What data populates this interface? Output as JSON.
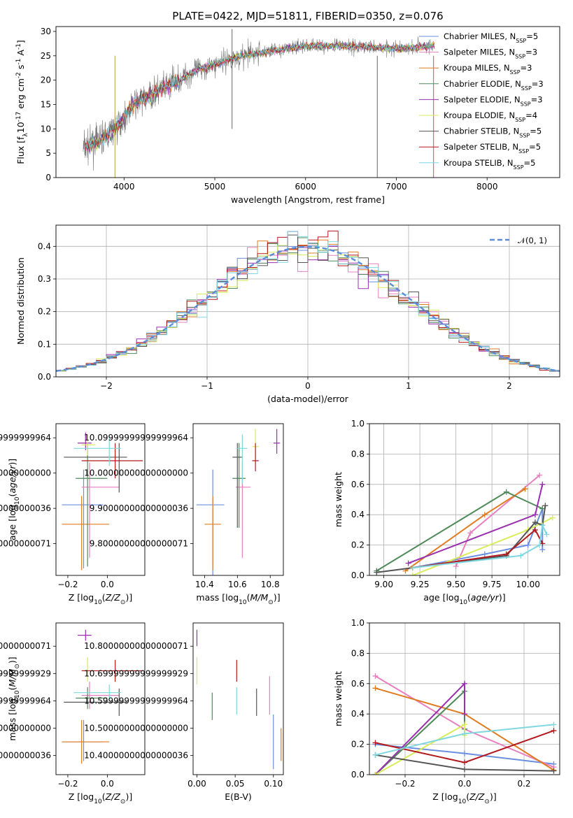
{
  "figure_title": "PLATE=0422, MJD=51811, FIBERID=0350, z=0.076",
  "colors": {
    "Chabrier MILES": "#6a8fe0",
    "Salpeter MILES": "#e77fbf",
    "Kroupa MILES": "#e07b20",
    "Chabrier ELODIE": "#4f8a5a",
    "Salpeter ELODIE": "#9a2fb0",
    "Kroupa ELODIE": "#d9ec5a",
    "Chabrier STELIB": "#555555",
    "Salpeter STELIB": "#b3191c",
    "Kroupa STELIB": "#7fd8e0",
    "normal": "#5b8cd6"
  },
  "chart_data": [
    {
      "id": "spectrum",
      "type": "line",
      "title": "PLATE=0422, MJD=51811, FIBERID=0350, z=0.076",
      "xlabel": "wavelength [Angstrom, rest frame]",
      "ylabel": "Flux [f$_\\lambda$10$^{-17}$ erg cm$^{-2}$ s$^{-1}$ A$^{-1}$]",
      "ylabel_text": "Flux [fλ10⁻¹⁷ erg cm⁻² s⁻¹ A⁻¹]",
      "xlim": [
        3250,
        8800
      ],
      "ylim": [
        0,
        31
      ],
      "xticks": [
        4000,
        5000,
        6000,
        7000,
        8000
      ],
      "yticks": [
        0,
        5,
        10,
        15,
        20,
        25,
        30
      ],
      "continuum": [
        [
          3550,
          6
        ],
        [
          3800,
          8.5
        ],
        [
          3950,
          11
        ],
        [
          4100,
          15
        ],
        [
          4400,
          18
        ],
        [
          4800,
          22
        ],
        [
          5200,
          24.5
        ],
        [
          5600,
          26
        ],
        [
          6000,
          27
        ],
        [
          6500,
          27
        ],
        [
          7000,
          26.5
        ],
        [
          7400,
          27
        ]
      ],
      "spikes": [
        [
          5190,
          30.5
        ],
        [
          6790,
          0
        ],
        [
          7410,
          0
        ],
        [
          3900,
          0
        ]
      ],
      "legend": [
        "Chabrier MILES, N$_{SSP}$=5",
        "Salpeter MILES, N$_{SSP}$=3",
        "Kroupa MILES, N$_{SSP}$=3",
        "Chabrier ELODIE, N$_{SSP}$=3",
        "Salpeter ELODIE, N$_{SSP}$=3",
        "Kroupa ELODIE, N$_{SSP}$=4",
        "Chabrier STELIB, N$_{SSP}$=5",
        "Salpeter STELIB, N$_{SSP}$=5",
        "Kroupa STELIB, N$_{SSP}$=5"
      ],
      "legend_parts": [
        [
          "Chabrier MILES, N",
          "SSP",
          "=5"
        ],
        [
          "Salpeter MILES, N",
          "SSP",
          "=3"
        ],
        [
          "Kroupa MILES, N",
          "SSP",
          "=3"
        ],
        [
          "Chabrier ELODIE, N",
          "SSP",
          "=3"
        ],
        [
          "Salpeter ELODIE, N",
          "SSP",
          "=3"
        ],
        [
          "Kroupa ELODIE, N",
          "SSP",
          "=4"
        ],
        [
          "Chabrier STELIB, N",
          "SSP",
          "=5"
        ],
        [
          "Salpeter STELIB, N",
          "SSP",
          "=5"
        ],
        [
          "Kroupa STELIB, N",
          "SSP",
          "=5"
        ]
      ],
      "legend_position": "upper right"
    },
    {
      "id": "residuals",
      "type": "histogram",
      "xlabel": "(data-model)/error",
      "ylabel": "Normed distribution",
      "xlim": [
        -2.5,
        2.5
      ],
      "ylim": [
        0,
        0.465
      ],
      "xticks": [
        -2,
        -1,
        0,
        1,
        2
      ],
      "yticks": [
        0.0,
        0.1,
        0.2,
        0.3,
        0.4
      ],
      "grid": true,
      "bin_width": 0.1,
      "reference_curve": {
        "label": "$\\mathcal{N}(0,1)$",
        "label_text": "𝒩(0, 1)",
        "mean": 0,
        "sigma": 1
      },
      "legend_position": "upper right"
    },
    {
      "id": "age_vs_Z",
      "type": "errorbar",
      "xlabel": "Z [log$_{10}$($Z/Z_\\odot$)]",
      "ylabel": "age  [log$_{10}$($age/yr$)]",
      "xlim": [
        -0.26,
        0.19
      ],
      "ylim": [
        9.71,
        10.14
      ],
      "xticks": [
        -0.2,
        0.0
      ],
      "yticks": [
        9.8,
        9.9,
        10.0,
        10.1
      ],
      "points": [
        {
          "model": "Chabrier MILES",
          "x": -0.12,
          "y": 9.91,
          "xerr": [
            0.11,
            0.1
          ],
          "yerr": [
            0.18,
            0.1
          ]
        },
        {
          "model": "Salpeter MILES",
          "x": -0.09,
          "y": 9.96,
          "xerr": [
            0.04,
            0.15
          ],
          "yerr": [
            0.2,
            0.07
          ]
        },
        {
          "model": "Kroupa MILES",
          "x": -0.13,
          "y": 9.855,
          "xerr": [
            0.1,
            0.14
          ],
          "yerr": [
            0.13,
            0.08
          ]
        },
        {
          "model": "Chabrier ELODIE",
          "x": -0.1,
          "y": 9.985,
          "xerr": [
            0.06,
            0.1
          ],
          "yerr": [
            0.25,
            0.1
          ]
        },
        {
          "model": "Salpeter ELODIE",
          "x": -0.11,
          "y": 10.085,
          "xerr": [
            0.04,
            0.03
          ],
          "yerr": [
            0.02,
            0.03
          ]
        },
        {
          "model": "Kroupa ELODIE",
          "x": -0.1,
          "y": 10.08,
          "xerr": [
            0.03,
            0.04
          ],
          "yerr": [
            0.03,
            0.03
          ]
        },
        {
          "model": "Chabrier STELIB",
          "x": 0.06,
          "y": 10.045,
          "xerr": [
            0.28,
            0.04
          ],
          "yerr": [
            0.1,
            0.04
          ]
        },
        {
          "model": "Salpeter STELIB",
          "x": 0.04,
          "y": 10.035,
          "xerr": [
            0.17,
            0.14
          ],
          "yerr": [
            0.05,
            0.05
          ]
        },
        {
          "model": "Kroupa STELIB",
          "x": 0.01,
          "y": 10.07,
          "xerr": [
            0.18,
            0.06
          ],
          "yerr": [
            0.05,
            0.04
          ]
        }
      ]
    },
    {
      "id": "age_vs_mass",
      "type": "errorbar",
      "xlabel": "mass [log$_{10}$($M/M_\\odot$)]",
      "ylabel": "",
      "xlim": [
        10.33,
        10.88
      ],
      "ylim": [
        9.71,
        10.14
      ],
      "xticks": [
        10.4,
        10.6,
        10.8
      ],
      "yticks": [
        9.8,
        9.9,
        10.0,
        10.1
      ],
      "points": [
        {
          "model": "Chabrier MILES",
          "x": 10.45,
          "y": 9.91,
          "xerr": [
            0.1,
            0.07
          ],
          "yerr": [
            0.2,
            0.1
          ]
        },
        {
          "model": "Salpeter MILES",
          "x": 10.63,
          "y": 9.96,
          "xerr": [
            0.04,
            0.05
          ],
          "yerr": [
            0.2,
            0.07
          ]
        },
        {
          "model": "Kroupa MILES",
          "x": 10.45,
          "y": 9.855,
          "xerr": [
            0.05,
            0.05
          ],
          "yerr": [
            0.13,
            0.08
          ]
        },
        {
          "model": "Chabrier ELODIE",
          "x": 10.61,
          "y": 9.985,
          "xerr": [
            0.04,
            0.04
          ],
          "yerr": [
            0.14,
            0.1
          ]
        },
        {
          "model": "Salpeter ELODIE",
          "x": 10.84,
          "y": 10.085,
          "xerr": [
            0.02,
            0.02
          ],
          "yerr": [
            0.03,
            0.04
          ]
        },
        {
          "model": "Kroupa ELODIE",
          "x": 10.71,
          "y": 10.075,
          "xerr": [
            0.02,
            0.02
          ],
          "yerr": [
            0.05,
            0.05
          ]
        },
        {
          "model": "Chabrier STELIB",
          "x": 10.6,
          "y": 10.045,
          "xerr": [
            0.03,
            0.03
          ],
          "yerr": [
            0.2,
            0.04
          ]
        },
        {
          "model": "Salpeter STELIB",
          "x": 10.71,
          "y": 10.035,
          "xerr": [
            0.02,
            0.02
          ],
          "yerr": [
            0.03,
            0.05
          ]
        },
        {
          "model": "Kroupa STELIB",
          "x": 10.63,
          "y": 10.07,
          "xerr": [
            0.03,
            0.03
          ],
          "yerr": [
            0.1,
            0.04
          ]
        }
      ]
    },
    {
      "id": "weight_vs_age",
      "type": "line",
      "xlabel": "age  [log$_{10}$($age/yr$)]",
      "ylabel": "mass weight",
      "xlim": [
        8.9,
        10.22
      ],
      "ylim": [
        0.0,
        1.0
      ],
      "xticks": [
        9.0,
        9.25,
        9.5,
        9.75,
        10.0
      ],
      "yticks": [
        0.0,
        0.2,
        0.4,
        0.6,
        0.8,
        1.0
      ],
      "grid": true,
      "series": [
        {
          "name": "Chabrier MILES",
          "x": [
            9.2,
            9.7,
            10.0,
            10.1,
            10.1
          ],
          "y": [
            0.05,
            0.14,
            0.2,
            0.44,
            0.17
          ]
        },
        {
          "name": "Salpeter MILES",
          "x": [
            9.5,
            9.6,
            10.08
          ],
          "y": [
            0.06,
            0.28,
            0.66
          ]
        },
        {
          "name": "Kroupa MILES",
          "x": [
            9.15,
            9.7,
            9.98
          ],
          "y": [
            0.03,
            0.4,
            0.57
          ]
        },
        {
          "name": "Chabrier ELODIE",
          "x": [
            8.95,
            9.85,
            10.1
          ],
          "y": [
            0.03,
            0.55,
            0.44
          ]
        },
        {
          "name": "Salpeter ELODIE",
          "x": [
            9.17,
            10.05,
            10.1
          ],
          "y": [
            0.08,
            0.4,
            0.6
          ]
        },
        {
          "name": "Kroupa ELODIE",
          "x": [
            9.2,
            10.0,
            10.17
          ],
          "y": [
            0.0,
            0.3,
            0.38
          ]
        },
        {
          "name": "Chabrier STELIB",
          "x": [
            8.95,
            9.85,
            10.05,
            10.1,
            10.12
          ],
          "y": [
            0.02,
            0.13,
            0.35,
            0.33,
            0.46
          ]
        },
        {
          "name": "Salpeter STELIB",
          "x": [
            9.2,
            9.85,
            10.05,
            10.1
          ],
          "y": [
            0.05,
            0.14,
            0.3,
            0.21
          ]
        },
        {
          "name": "Kroupa STELIB",
          "x": [
            9.2,
            9.95,
            10.08,
            10.1,
            10.13
          ],
          "y": [
            0.05,
            0.13,
            0.2,
            0.33,
            0.27
          ]
        }
      ]
    },
    {
      "id": "mass_vs_Z",
      "type": "errorbar",
      "xlabel": "Z [log$_{10}$($Z/Z_\\odot$)]",
      "ylabel": "mass [log$_{10}$($M/M_\\odot$)]",
      "xlim": [
        -0.26,
        0.19
      ],
      "ylim": [
        10.33,
        10.885
      ],
      "xticks": [
        -0.2,
        0.0
      ],
      "yticks": [
        10.4,
        10.5,
        10.6,
        10.7,
        10.8
      ],
      "points": [
        {
          "model": "Chabrier MILES",
          "x": -0.12,
          "y": 10.45,
          "xerr": [
            0.11,
            0.1
          ],
          "yerr": [
            0.07,
            0.08
          ]
        },
        {
          "model": "Salpeter MILES",
          "x": -0.09,
          "y": 10.62,
          "xerr": [
            0.04,
            0.15
          ],
          "yerr": [
            0.05,
            0.05
          ]
        },
        {
          "model": "Kroupa MILES",
          "x": -0.13,
          "y": 10.45,
          "xerr": [
            0.1,
            0.14
          ],
          "yerr": [
            0.08,
            0.08
          ]
        },
        {
          "model": "Chabrier ELODIE",
          "x": -0.1,
          "y": 10.61,
          "xerr": [
            0.06,
            0.1
          ],
          "yerr": [
            0.04,
            0.04
          ]
        },
        {
          "model": "Salpeter ELODIE",
          "x": -0.11,
          "y": 10.84,
          "xerr": [
            0.04,
            0.03
          ],
          "yerr": [
            0.02,
            0.02
          ]
        },
        {
          "model": "Kroupa ELODIE",
          "x": -0.1,
          "y": 10.71,
          "xerr": [
            0.03,
            0.04
          ],
          "yerr": [
            0.04,
            0.05
          ]
        },
        {
          "model": "Chabrier STELIB",
          "x": 0.06,
          "y": 10.595,
          "xerr": [
            0.28,
            0.04
          ],
          "yerr": [
            0.05,
            0.05
          ]
        },
        {
          "model": "Salpeter STELIB",
          "x": 0.04,
          "y": 10.71,
          "xerr": [
            0.17,
            0.14
          ],
          "yerr": [
            0.04,
            0.04
          ]
        },
        {
          "model": "Kroupa STELIB",
          "x": 0.01,
          "y": 10.63,
          "xerr": [
            0.18,
            0.06
          ],
          "yerr": [
            0.03,
            0.03
          ]
        }
      ]
    },
    {
      "id": "mass_vs_EBV",
      "type": "errorbar",
      "xlabel": "E(B-V)",
      "ylabel": "",
      "xlim": [
        -0.005,
        0.113
      ],
      "ylim": [
        10.33,
        10.885
      ],
      "xticks": [
        0.0,
        0.05,
        0.1
      ],
      "yticks": [
        10.4,
        10.5,
        10.6,
        10.7,
        10.8
      ],
      "points": [
        {
          "model": "Chabrier MILES",
          "x": 0.1,
          "y": 10.45,
          "xerr": [
            0,
            0
          ],
          "yerr": [
            0.1,
            0.1
          ]
        },
        {
          "model": "Salpeter MILES",
          "x": 0.095,
          "y": 10.62,
          "xerr": [
            0,
            0
          ],
          "yerr": [
            0.07,
            0.07
          ]
        },
        {
          "model": "Kroupa MILES",
          "x": 0.11,
          "y": 10.44,
          "xerr": [
            0,
            0
          ],
          "yerr": [
            0.06,
            0.06
          ]
        },
        {
          "model": "Chabrier ELODIE",
          "x": 0.02,
          "y": 10.58,
          "xerr": [
            0,
            0
          ],
          "yerr": [
            0.05,
            0.05
          ]
        },
        {
          "model": "Salpeter ELODIE",
          "x": 0.0,
          "y": 10.83,
          "xerr": [
            0,
            0
          ],
          "yerr": [
            0.03,
            0.03
          ]
        },
        {
          "model": "Kroupa ELODIE",
          "x": 0.0,
          "y": 10.71,
          "xerr": [
            0,
            0
          ],
          "yerr": [
            0.05,
            0.05
          ]
        },
        {
          "model": "Chabrier STELIB",
          "x": 0.078,
          "y": 10.595,
          "xerr": [
            0,
            0
          ],
          "yerr": [
            0.05,
            0.05
          ]
        },
        {
          "model": "Salpeter STELIB",
          "x": 0.052,
          "y": 10.71,
          "xerr": [
            0,
            0
          ],
          "yerr": [
            0.04,
            0.04
          ]
        },
        {
          "model": "Kroupa STELIB",
          "x": 0.052,
          "y": 10.6,
          "xerr": [
            0,
            0
          ],
          "yerr": [
            0.05,
            0.05
          ]
        }
      ]
    },
    {
      "id": "weight_vs_Z",
      "type": "line",
      "xlabel": "Z [log$_{10}$($Z/Z_\\odot$)]",
      "ylabel": "mass weight",
      "xlim": [
        -0.32,
        0.32
      ],
      "ylim": [
        0.0,
        1.0
      ],
      "xticks": [
        -0.2,
        0.0,
        0.2
      ],
      "yticks": [
        0.0,
        0.2,
        0.4,
        0.6,
        0.8,
        1.0
      ],
      "grid": true,
      "series": [
        {
          "name": "Chabrier MILES",
          "x": [
            -0.3,
            0.0,
            0.3
          ],
          "y": [
            0.2,
            0.14,
            0.07
          ]
        },
        {
          "name": "Salpeter MILES",
          "x": [
            -0.3,
            0.0,
            0.3
          ],
          "y": [
            0.65,
            0.3,
            0.05
          ]
        },
        {
          "name": "Kroupa MILES",
          "x": [
            -0.3,
            0.0,
            0.3
          ],
          "y": [
            0.57,
            0.4,
            0.03
          ]
        },
        {
          "name": "Chabrier ELODIE",
          "x": [
            -0.3,
            0.0,
            0.0
          ],
          "y": [
            0.0,
            0.55,
            0.3
          ]
        },
        {
          "name": "Salpeter ELODIE",
          "x": [
            -0.3,
            0.0,
            0.0
          ],
          "y": [
            0.0,
            0.6,
            0.4
          ]
        },
        {
          "name": "Kroupa ELODIE",
          "x": [
            -0.3,
            0.0,
            0.0
          ],
          "y": [
            0.0,
            0.33,
            0.26
          ]
        },
        {
          "name": "Chabrier STELIB",
          "x": [
            -0.3,
            0.0,
            0.3
          ],
          "y": [
            0.13,
            0.035,
            0.025
          ]
        },
        {
          "name": "Salpeter STELIB",
          "x": [
            -0.3,
            0.0,
            0.3
          ],
          "y": [
            0.21,
            0.08,
            0.29
          ]
        },
        {
          "name": "Kroupa STELIB",
          "x": [
            -0.3,
            0.0,
            0.3
          ],
          "y": [
            0.13,
            0.27,
            0.33
          ]
        }
      ]
    }
  ]
}
